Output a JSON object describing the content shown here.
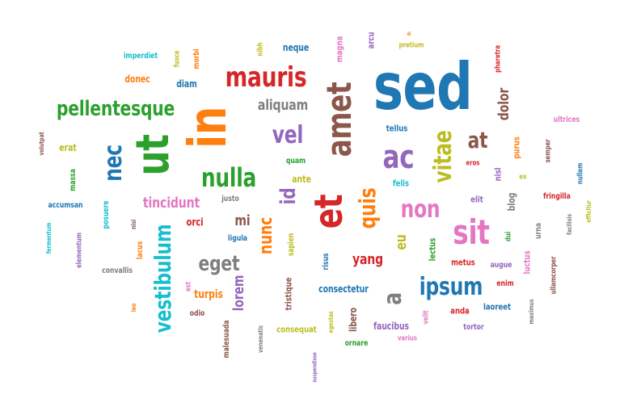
{
  "colors": {
    "blue": "#1f77b4",
    "orange": "#ff7f0e",
    "green": "#2ca02c",
    "red": "#d62728",
    "purple": "#9467bd",
    "brown": "#8c564b",
    "pink": "#e377c2",
    "gray": "#7f7f7f",
    "olive": "#bcbd22",
    "cyan": "#17becf"
  },
  "words": [
    "sed",
    "in",
    "ut",
    "et",
    "amet",
    "mauris",
    "nulla",
    "pellentesque",
    "vestibulum",
    "ac",
    "sit",
    "quis",
    "ipsum",
    "id",
    "vitae",
    "nec",
    "non",
    "vel",
    "a",
    "eget",
    "at",
    "nunc",
    "lorem",
    "dolor",
    "tincidunt",
    "aliquam",
    "eu",
    "yang",
    "mi",
    "neque",
    "arcu",
    "nibh",
    "magna",
    "pretium",
    "di",
    "imperdiet",
    "morbi",
    "fusce",
    "donec",
    "diam",
    "pharetra",
    "tellus",
    "ultrices",
    "volutpat",
    "erat",
    "quam",
    "semper",
    "purus",
    "eros",
    "nisl",
    "ex",
    "nullam",
    "massa",
    "felis",
    "ante",
    "elit",
    "blog",
    "fringilla",
    "accumsan",
    "posuere",
    "justo",
    "orci",
    "nisi",
    "urna",
    "facilisis",
    "efficitur",
    "fermentum",
    "elementum",
    "lacus",
    "ligula",
    "sapien",
    "lectus",
    "dui",
    "luctus",
    "risus",
    "metus",
    "augue",
    "convallis",
    "turpis",
    "consectetur",
    "enim",
    "ullamcorper",
    "est",
    "tristique",
    "leo",
    "odio",
    "anda",
    "laoreet",
    "maximus",
    "malesuada",
    "venenatis",
    "consequat",
    "egestas",
    "libero",
    "faucibus",
    "velit",
    "tortor",
    "ornare",
    "varius",
    "suspendisse"
  ]
}
